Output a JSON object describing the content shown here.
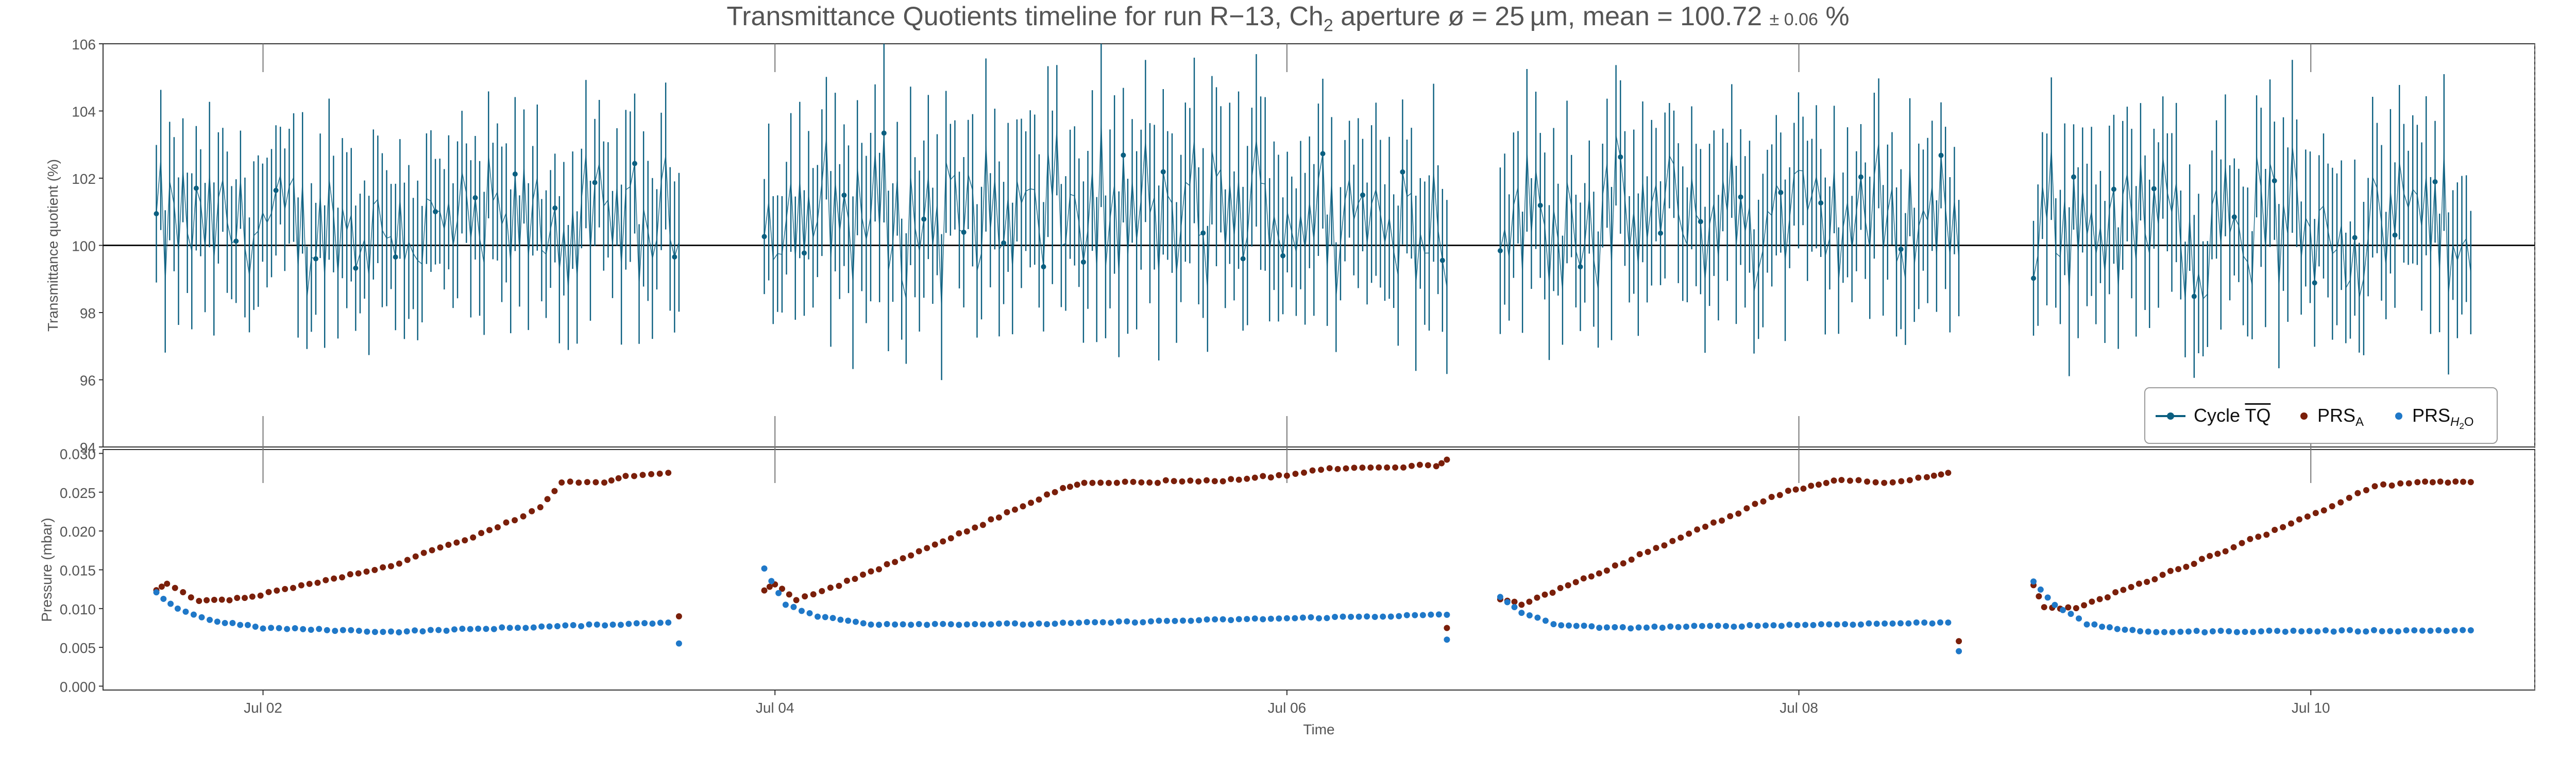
{
  "title_parts": {
    "prefix": "Transmittance Quotients timeline for run R−13, Ch",
    "channel_sub": "2",
    "middle": " aperture ø = 25 µm, mean = 100.72",
    "error": "± 0.06",
    "suffix": " %"
  },
  "chart_data": [
    {
      "type": "line",
      "ylabel": "Transmittance quotient (%)",
      "ylim": [
        94,
        106
      ],
      "yticks": [
        "94",
        "96",
        "98",
        "100",
        "102",
        "104",
        "106"
      ],
      "reference_line": 100,
      "xlim": [
        "2024-07-01T09:00",
        "2024-07-10T21:00"
      ],
      "grid": false,
      "legend_position": "lower-right",
      "series": [
        {
          "name": "Cycle TQ",
          "color": "#0b5f80",
          "error_bars": true,
          "segments": [
            {
              "start": "2024-07-01T14:00",
              "end": "2024-07-03T15:00",
              "mean": 100.5,
              "spread": 2.6,
              "error": 2.4
            },
            {
              "start": "2024-07-03T23:00",
              "end": "2024-07-06T15:00",
              "mean": 100.9,
              "spread": 3.0,
              "error": 2.7
            },
            {
              "start": "2024-07-06T20:00",
              "end": "2024-07-08T15:00",
              "mean": 100.8,
              "spread": 2.7,
              "error": 2.5
            },
            {
              "start": "2024-07-08T22:00",
              "end": "2024-07-10T15:00",
              "mean": 100.7,
              "spread": 2.9,
              "error": 2.6
            }
          ]
        }
      ]
    },
    {
      "type": "scatter",
      "xlabel": "Time",
      "ylabel": "Pressure (mbar)",
      "ylim": [
        -0.0005,
        0.0305
      ],
      "yticks": [
        "0.000",
        "0.005",
        "0.010",
        "0.015",
        "0.020",
        "0.025",
        "0.030"
      ],
      "xticks": [
        {
          "t": "2024-07-02T00:00",
          "label": "Jul 02"
        },
        {
          "t": "2024-07-04T00:00",
          "label": "Jul 04"
        },
        {
          "t": "2024-07-06T00:00",
          "label": "Jul 06"
        },
        {
          "t": "2024-07-08T00:00",
          "label": "Jul 08"
        },
        {
          "t": "2024-07-10T00:00",
          "label": "Jul 10"
        }
      ],
      "series": [
        {
          "name": "PRS A",
          "color": "#7a1f0a",
          "segments": [
            {
              "points": [
                [
                  "2024-07-01T14:00",
                  0.0125
                ],
                [
                  "2024-07-01T15:00",
                  0.0132
                ],
                [
                  "2024-07-01T18:00",
                  0.0109
                ],
                [
                  "2024-07-01T23:00",
                  0.0115
                ],
                [
                  "2024-07-02T12:00",
                  0.0155
                ],
                [
                  "2024-07-02T22:00",
                  0.0205
                ],
                [
                  "2024-07-03T02:00",
                  0.023
                ],
                [
                  "2024-07-03T04:00",
                  0.0262
                ],
                [
                  "2024-07-03T08:00",
                  0.0262
                ],
                [
                  "2024-07-03T10:00",
                  0.027
                ],
                [
                  "2024-07-03T14:00",
                  0.0275
                ]
              ]
            },
            {
              "points": [
                [
                  "2024-07-03T23:00",
                  0.0125
                ],
                [
                  "2024-07-04T00:00",
                  0.0132
                ],
                [
                  "2024-07-04T02:00",
                  0.0112
                ],
                [
                  "2024-07-04T06:00",
                  0.013
                ],
                [
                  "2024-07-04T18:00",
                  0.02
                ],
                [
                  "2024-07-05T03:00",
                  0.0255
                ],
                [
                  "2024-07-05T05:00",
                  0.0262
                ],
                [
                  "2024-07-05T18:00",
                  0.0265
                ],
                [
                  "2024-07-06T00:00",
                  0.0272
                ],
                [
                  "2024-07-06T04:00",
                  0.028
                ],
                [
                  "2024-07-06T14:00",
                  0.0285
                ],
                [
                  "2024-07-06T15:00",
                  0.0292
                ]
              ]
            },
            {
              "points": [
                [
                  "2024-07-06T20:00",
                  0.0112
                ],
                [
                  "2024-07-06T22:00",
                  0.0105
                ],
                [
                  "2024-07-07T06:00",
                  0.015
                ],
                [
                  "2024-07-07T16:00",
                  0.021
                ],
                [
                  "2024-07-07T23:00",
                  0.0252
                ],
                [
                  "2024-07-08T04:00",
                  0.0266
                ],
                [
                  "2024-07-08T08:00",
                  0.0262
                ],
                [
                  "2024-07-08T12:00",
                  0.027
                ],
                [
                  "2024-07-08T14:00",
                  0.0275
                ]
              ]
            },
            {
              "points": [
                [
                  "2024-07-08T22:00",
                  0.013
                ],
                [
                  "2024-07-08T23:00",
                  0.0102
                ],
                [
                  "2024-07-09T02:00",
                  0.01
                ],
                [
                  "2024-07-09T16:00",
                  0.0175
                ],
                [
                  "2024-07-10T02:00",
                  0.0232
                ],
                [
                  "2024-07-10T06:00",
                  0.0258
                ],
                [
                  "2024-07-10T10:00",
                  0.0262
                ],
                [
                  "2024-07-10T15:00",
                  0.0263
                ]
              ]
            }
          ],
          "outliers": [
            [
              "2024-07-03T15:00",
              0.009
            ],
            [
              "2024-07-06T15:00",
              0.0075
            ],
            [
              "2024-07-08T15:00",
              0.0058
            ]
          ]
        },
        {
          "name": "PRS H2O",
          "color": "#1f78c8",
          "segments": [
            {
              "points": [
                [
                  "2024-07-01T14:00",
                  0.012
                ],
                [
                  "2024-07-01T16:00",
                  0.01
                ],
                [
                  "2024-07-01T19:00",
                  0.0085
                ],
                [
                  "2024-07-02T00:00",
                  0.0075
                ],
                [
                  "2024-07-02T12:00",
                  0.007
                ],
                [
                  "2024-07-03T14:00",
                  0.0082
                ]
              ]
            },
            {
              "points": [
                [
                  "2024-07-03T23:00",
                  0.0152
                ],
                [
                  "2024-07-04T01:00",
                  0.0105
                ],
                [
                  "2024-07-04T04:00",
                  0.009
                ],
                [
                  "2024-07-04T09:00",
                  0.008
                ],
                [
                  "2024-07-05T00:00",
                  0.008
                ],
                [
                  "2024-07-06T15:00",
                  0.0092
                ]
              ]
            },
            {
              "points": [
                [
                  "2024-07-06T20:00",
                  0.0115
                ],
                [
                  "2024-07-06T22:00",
                  0.0095
                ],
                [
                  "2024-07-07T01:00",
                  0.008
                ],
                [
                  "2024-07-07T06:00",
                  0.0075
                ],
                [
                  "2024-07-08T14:00",
                  0.0082
                ]
              ]
            },
            {
              "points": [
                [
                  "2024-07-08T22:00",
                  0.0135
                ],
                [
                  "2024-07-09T00:00",
                  0.0105
                ],
                [
                  "2024-07-09T03:00",
                  0.008
                ],
                [
                  "2024-07-09T08:00",
                  0.007
                ],
                [
                  "2024-07-10T15:00",
                  0.0072
                ]
              ]
            }
          ],
          "outliers": [
            [
              "2024-07-03T15:00",
              0.0055
            ],
            [
              "2024-07-06T15:00",
              0.006
            ],
            [
              "2024-07-08T15:00",
              0.0045
            ]
          ]
        }
      ]
    }
  ],
  "legend": {
    "tq_prefix": "Cycle ",
    "tq_symbol": "TQ",
    "prs_a_base": "PRS",
    "prs_a_sub": "A",
    "prs_h2o_base": "PRS",
    "prs_h2o_sub_a": "H",
    "prs_h2o_sub_b": "2",
    "prs_h2o_sub_c": "O"
  }
}
